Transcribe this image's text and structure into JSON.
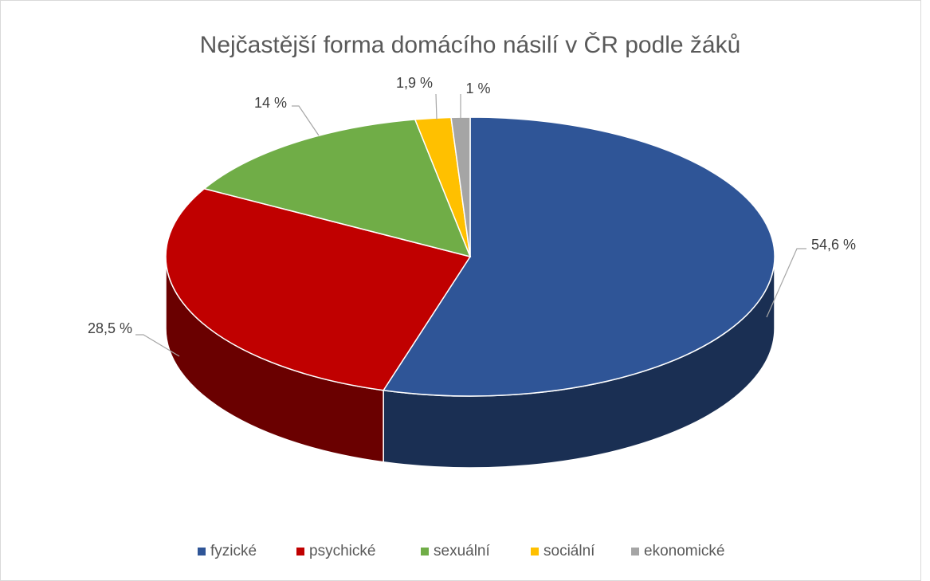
{
  "chart_data": {
    "type": "pie",
    "title": "Nejčastější forma domácího násilí v ČR podle žáků",
    "categories": [
      "fyzické",
      "psychické",
      "sexuální",
      "sociální",
      "ekonomické"
    ],
    "values": [
      54.6,
      28.5,
      14,
      1.9,
      1
    ],
    "value_labels": [
      "54,6 %",
      "28,5 %",
      "14 %",
      "1,9 %",
      "1 %"
    ],
    "colors": [
      "#2f5597",
      "#c00000",
      "#70ad47",
      "#ffc000",
      "#a5a5a5"
    ],
    "legend": "bottom"
  }
}
